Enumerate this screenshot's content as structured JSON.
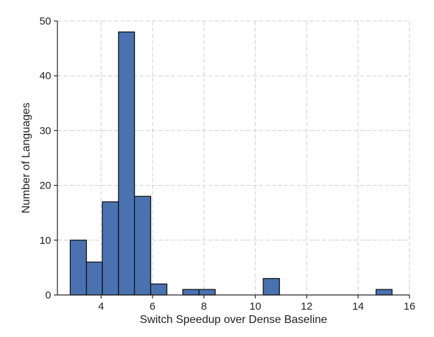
{
  "chart_data": {
    "type": "bar",
    "subtype": "histogram",
    "xlabel": "Switch Speedup over Dense Baseline",
    "ylabel": "Number of Languages",
    "xlim": [
      2.3,
      16
    ],
    "ylim": [
      0,
      50
    ],
    "xticks": [
      4,
      6,
      8,
      10,
      12,
      14,
      16
    ],
    "yticks": [
      0,
      10,
      20,
      30,
      40,
      50
    ],
    "grid": true,
    "bar_color": "#4a72b0",
    "bins": [
      {
        "x0": 2.8,
        "x1": 3.43,
        "count": 10
      },
      {
        "x0": 3.43,
        "x1": 4.05,
        "count": 6
      },
      {
        "x0": 4.05,
        "x1": 4.68,
        "count": 17
      },
      {
        "x0": 4.68,
        "x1": 5.3,
        "count": 48
      },
      {
        "x0": 5.3,
        "x1": 5.93,
        "count": 18
      },
      {
        "x0": 5.93,
        "x1": 6.56,
        "count": 2
      },
      {
        "x0": 6.56,
        "x1": 7.18,
        "count": 0
      },
      {
        "x0": 7.18,
        "x1": 7.81,
        "count": 1
      },
      {
        "x0": 7.81,
        "x1": 8.44,
        "count": 1
      },
      {
        "x0": 8.44,
        "x1": 9.06,
        "count": 0
      },
      {
        "x0": 9.06,
        "x1": 9.69,
        "count": 0
      },
      {
        "x0": 9.69,
        "x1": 10.31,
        "count": 0
      },
      {
        "x0": 10.31,
        "x1": 10.94,
        "count": 3
      },
      {
        "x0": 10.94,
        "x1": 11.57,
        "count": 0
      },
      {
        "x0": 11.57,
        "x1": 12.19,
        "count": 0
      },
      {
        "x0": 12.19,
        "x1": 12.82,
        "count": 0
      },
      {
        "x0": 12.82,
        "x1": 13.45,
        "count": 0
      },
      {
        "x0": 13.45,
        "x1": 14.07,
        "count": 0
      },
      {
        "x0": 14.07,
        "x1": 14.7,
        "count": 0
      },
      {
        "x0": 14.7,
        "x1": 15.32,
        "count": 1
      }
    ]
  }
}
